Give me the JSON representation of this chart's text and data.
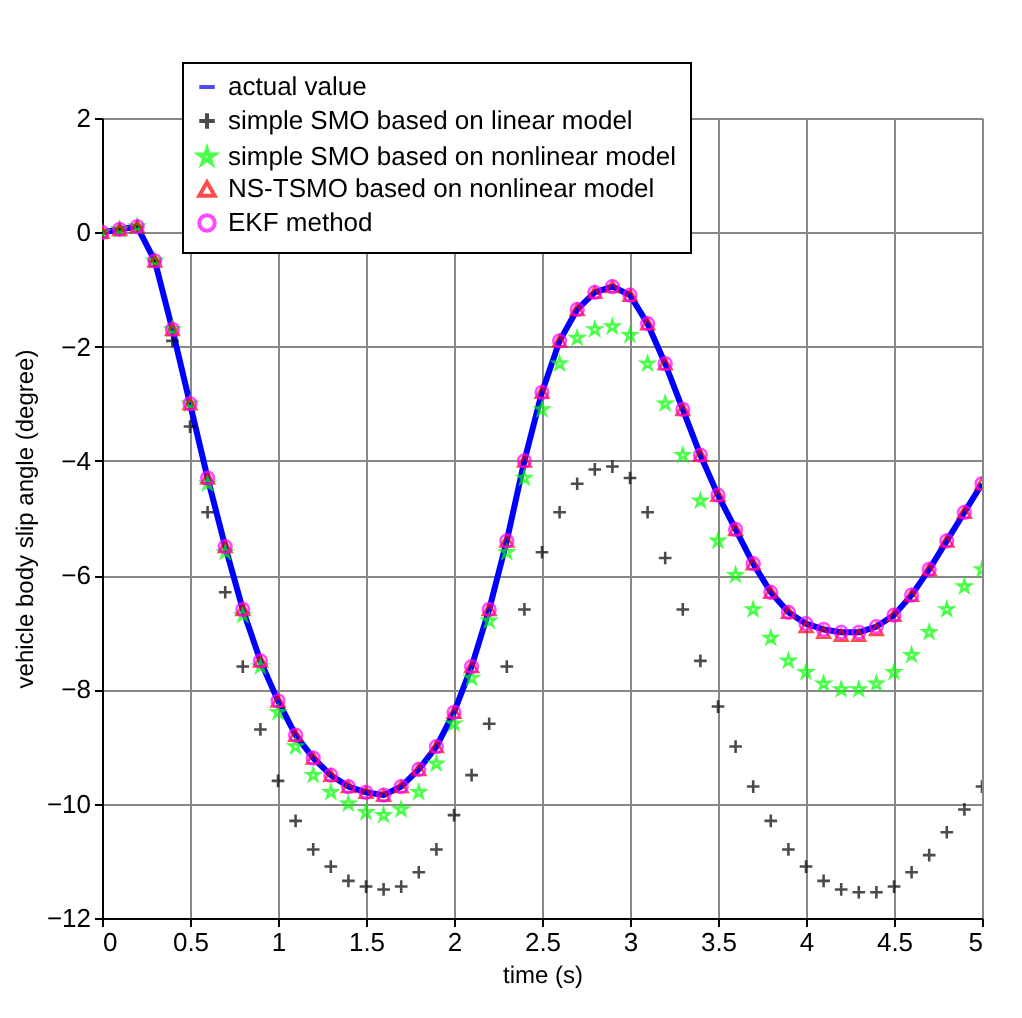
{
  "chart_data": {
    "type": "scatter",
    "xlabel": "time (s)",
    "ylabel": "vehicle body slip angle (degree)",
    "x": [
      0,
      0.1,
      0.2,
      0.3,
      0.4,
      0.5,
      0.6,
      0.7,
      0.8,
      0.9,
      1.0,
      1.1,
      1.2,
      1.3,
      1.4,
      1.5,
      1.6,
      1.7,
      1.8,
      1.9,
      2.0,
      2.1,
      2.2,
      2.3,
      2.4,
      2.5,
      2.6,
      2.7,
      2.8,
      2.9,
      3.0,
      3.1,
      3.2,
      3.3,
      3.4,
      3.5,
      3.6,
      3.7,
      3.8,
      3.9,
      4.0,
      4.1,
      4.2,
      4.3,
      4.4,
      4.5,
      4.6,
      4.7,
      4.8,
      4.9,
      5.0
    ],
    "series": [
      {
        "name": "actual value",
        "type": "line",
        "color": "#0000ff",
        "values": [
          0,
          0.05,
          0.1,
          -0.5,
          -1.7,
          -3.0,
          -4.3,
          -5.5,
          -6.6,
          -7.5,
          -8.2,
          -8.8,
          -9.2,
          -9.5,
          -9.7,
          -9.8,
          -9.85,
          -9.7,
          -9.4,
          -9.0,
          -8.4,
          -7.6,
          -6.6,
          -5.4,
          -4.0,
          -2.8,
          -1.9,
          -1.35,
          -1.05,
          -0.95,
          -1.1,
          -1.6,
          -2.3,
          -3.1,
          -3.9,
          -4.6,
          -5.2,
          -5.8,
          -6.3,
          -6.65,
          -6.85,
          -6.95,
          -7.0,
          -7.0,
          -6.9,
          -6.7,
          -6.35,
          -5.9,
          -5.4,
          -4.9,
          -4.4
        ]
      },
      {
        "name": "simple SMO based on linear model",
        "marker": "cross",
        "color": "#000000",
        "values": [
          0,
          0.05,
          0.1,
          -0.5,
          -1.9,
          -3.4,
          -4.9,
          -6.3,
          -7.6,
          -8.7,
          -9.6,
          -10.3,
          -10.8,
          -11.1,
          -11.35,
          -11.45,
          -11.5,
          -11.45,
          -11.2,
          -10.8,
          -10.2,
          -9.5,
          -8.6,
          -7.6,
          -6.6,
          -5.6,
          -4.9,
          -4.4,
          -4.15,
          -4.1,
          -4.3,
          -4.9,
          -5.7,
          -6.6,
          -7.5,
          -8.3,
          -9.0,
          -9.7,
          -10.3,
          -10.8,
          -11.1,
          -11.35,
          -11.5,
          -11.55,
          -11.55,
          -11.45,
          -11.2,
          -10.9,
          -10.5,
          -10.1,
          -9.7
        ]
      },
      {
        "name": "simple SMO based on nonlinear model",
        "marker": "star",
        "color": "#00ff00",
        "values": [
          0,
          0.05,
          0.1,
          -0.5,
          -1.7,
          -3.0,
          -4.4,
          -5.6,
          -6.7,
          -7.6,
          -8.4,
          -9.0,
          -9.5,
          -9.8,
          -10.0,
          -10.15,
          -10.2,
          -10.1,
          -9.8,
          -9.3,
          -8.6,
          -7.8,
          -6.8,
          -5.6,
          -4.3,
          -3.1,
          -2.3,
          -1.85,
          -1.7,
          -1.65,
          -1.8,
          -2.3,
          -3.0,
          -3.9,
          -4.7,
          -5.4,
          -6.0,
          -6.6,
          -7.1,
          -7.5,
          -7.7,
          -7.9,
          -8.0,
          -8.0,
          -7.9,
          -7.7,
          -7.4,
          -7.0,
          -6.6,
          -6.2,
          -5.9
        ]
      },
      {
        "name": "NS-TSMO based on nonlinear model",
        "marker": "triangle",
        "color": "#ff0000",
        "values": [
          0,
          0.05,
          0.1,
          -0.5,
          -1.7,
          -3.0,
          -4.3,
          -5.5,
          -6.6,
          -7.5,
          -8.2,
          -8.8,
          -9.2,
          -9.5,
          -9.7,
          -9.8,
          -9.85,
          -9.7,
          -9.4,
          -9.0,
          -8.4,
          -7.6,
          -6.6,
          -5.4,
          -4.0,
          -2.8,
          -1.9,
          -1.35,
          -1.05,
          -0.95,
          -1.1,
          -1.6,
          -2.3,
          -3.1,
          -3.9,
          -4.6,
          -5.2,
          -5.8,
          -6.3,
          -6.65,
          -6.9,
          -7.0,
          -7.05,
          -7.05,
          -6.95,
          -6.7,
          -6.35,
          -5.9,
          -5.4,
          -4.9,
          -4.4
        ]
      },
      {
        "name": "EKF method",
        "marker": "circle",
        "color": "#ff00ff",
        "values": [
          0,
          0.05,
          0.1,
          -0.5,
          -1.7,
          -3.0,
          -4.3,
          -5.5,
          -6.6,
          -7.5,
          -8.2,
          -8.8,
          -9.2,
          -9.5,
          -9.7,
          -9.8,
          -9.85,
          -9.7,
          -9.4,
          -9.0,
          -8.4,
          -7.6,
          -6.6,
          -5.4,
          -4.0,
          -2.8,
          -1.9,
          -1.35,
          -1.05,
          -0.95,
          -1.1,
          -1.6,
          -2.3,
          -3.1,
          -3.9,
          -4.6,
          -5.2,
          -5.8,
          -6.3,
          -6.65,
          -6.85,
          -6.95,
          -7.0,
          -7.0,
          -6.9,
          -6.7,
          -6.35,
          -5.9,
          -5.4,
          -4.9,
          -4.4
        ]
      }
    ],
    "xlim": [
      0,
      5
    ],
    "xticks": [
      0,
      0.5,
      1,
      1.5,
      2,
      2.5,
      3,
      3.5,
      4,
      4.5,
      5
    ],
    "ylim": [
      -12,
      2
    ],
    "yticks": [
      -12,
      -10,
      -8,
      -6,
      -4,
      -2,
      0,
      2
    ],
    "grid": true,
    "legend": "top"
  }
}
